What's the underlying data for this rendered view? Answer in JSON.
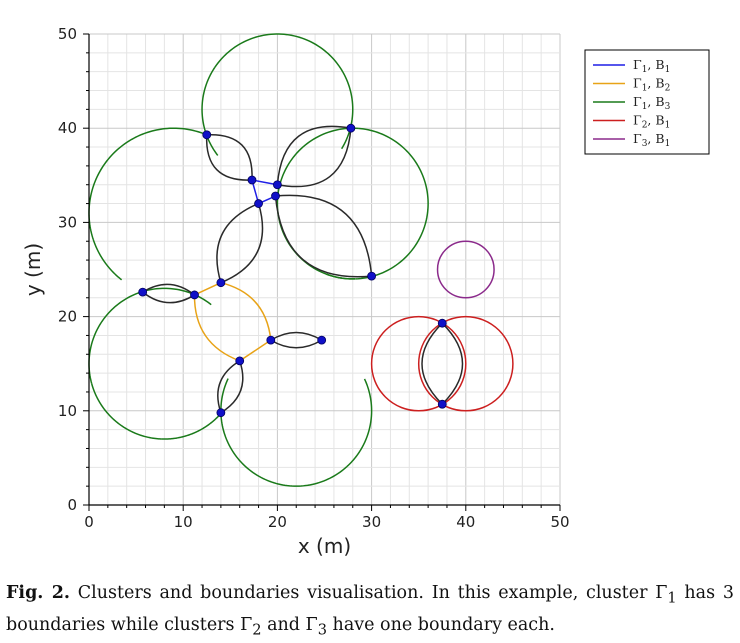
{
  "chart_data": {
    "type": "scatter",
    "xlabel": "x (m)",
    "ylabel": "y (m)",
    "xlim": [
      0,
      50
    ],
    "ylim": [
      0,
      50
    ],
    "x_ticks": [
      "0",
      "10",
      "20",
      "30",
      "40",
      "50"
    ],
    "y_ticks": [
      "0",
      "10",
      "20",
      "30",
      "40",
      "50"
    ],
    "grid": true,
    "legend_position": "top-right",
    "colors": {
      "blue": "#1f1fe6",
      "orange": "#e8a317",
      "green": "#1a7a1a",
      "red": "#cc1f1f",
      "purple": "#8b2a8b",
      "black": "#2a2a2a",
      "node": "#1010c8"
    },
    "legend": [
      {
        "symbol": "Γ",
        "sub1": "1",
        "base": "B",
        "sub2": "1",
        "color": "#1f1fe6"
      },
      {
        "symbol": "Γ",
        "sub1": "1",
        "base": "B",
        "sub2": "2",
        "color": "#e8a317"
      },
      {
        "symbol": "Γ",
        "sub1": "1",
        "base": "B",
        "sub2": "3",
        "color": "#1a7a1a"
      },
      {
        "symbol": "Γ",
        "sub1": "2",
        "base": "B",
        "sub2": "1",
        "color": "#cc1f1f"
      },
      {
        "symbol": "Γ",
        "sub1": "3",
        "base": "B",
        "sub2": "1",
        "color": "#8b2a8b"
      }
    ],
    "circles": [
      {
        "cx": 20,
        "cy": 42,
        "r": 8
      },
      {
        "cx": 9,
        "cy": 31,
        "r": 9
      },
      {
        "cx": 28,
        "cy": 32,
        "r": 8
      },
      {
        "cx": 8,
        "cy": 15,
        "r": 8
      },
      {
        "cx": 22,
        "cy": 10,
        "r": 8
      },
      {
        "cx": 35,
        "cy": 15,
        "r": 5
      },
      {
        "cx": 40,
        "cy": 15,
        "r": 5
      },
      {
        "cx": 40,
        "cy": 25,
        "r": 3
      }
    ],
    "arcs": [
      {
        "p1": [
          12.5,
          39.3
        ],
        "p2": [
          17.3,
          34.5
        ],
        "color": "black",
        "bend": 0.55
      },
      {
        "p1": [
          27.8,
          40.0
        ],
        "p2": [
          20.0,
          34.0
        ],
        "color": "black",
        "bend": -0.55
      },
      {
        "p1": [
          17.3,
          34.5
        ],
        "p2": [
          20.0,
          34.0
        ],
        "color": "blue",
        "bend": 0
      },
      {
        "p1": [
          17.3,
          34.5
        ],
        "p2": [
          18.0,
          32.0
        ],
        "color": "blue",
        "bend": 0
      },
      {
        "p1": [
          18.0,
          32.0
        ],
        "p2": [
          19.8,
          32.8
        ],
        "color": "blue",
        "bend": 0
      },
      {
        "p1": [
          18.0,
          32.0
        ],
        "p2": [
          14.0,
          23.6
        ],
        "color": "black",
        "bend": 0.45
      },
      {
        "p1": [
          19.8,
          32.8
        ],
        "p2": [
          30.0,
          24.3
        ],
        "color": "black",
        "bend": -0.5
      },
      {
        "p1": [
          5.7,
          22.6
        ],
        "p2": [
          11.2,
          22.3
        ],
        "color": "black",
        "bend": 0.35
      },
      {
        "p1": [
          11.2,
          22.3
        ],
        "p2": [
          14.0,
          23.6
        ],
        "color": "orange",
        "bend": 0
      },
      {
        "p1": [
          14.0,
          23.6
        ],
        "p2": [
          19.3,
          17.5
        ],
        "color": "orange",
        "bend": -0.35
      },
      {
        "p1": [
          11.2,
          22.3
        ],
        "p2": [
          16.0,
          15.3
        ],
        "color": "orange",
        "bend": 0.35
      },
      {
        "p1": [
          16.0,
          15.3
        ],
        "p2": [
          19.3,
          17.5
        ],
        "color": "orange",
        "bend": 0
      },
      {
        "p1": [
          16.0,
          15.3
        ],
        "p2": [
          14.0,
          9.8
        ],
        "color": "black",
        "bend": 0.4
      },
      {
        "p1": [
          19.3,
          17.5
        ],
        "p2": [
          24.7,
          17.5
        ],
        "color": "black",
        "bend": 0.3
      },
      {
        "p1": [
          37.5,
          19.3
        ],
        "p2": [
          37.5,
          10.7
        ],
        "color": "black",
        "bend": 0.5
      }
    ],
    "green_arcs": [
      {
        "cx": 20,
        "cy": 42,
        "r": 8,
        "from": 2.55,
        "to": 3.8
      },
      {
        "cx": 9,
        "cy": 31,
        "r": 9,
        "from": 1.13,
        "to": 3.46
      },
      {
        "cx": 28,
        "cy": 32,
        "r": 8,
        "from": 1.5,
        "to": 4.75
      },
      {
        "cx": 8,
        "cy": 15,
        "r": 8,
        "from": 3.41,
        "to": 4.68
      },
      {
        "cx": 22,
        "cy": 10,
        "r": 8,
        "from": 5.45,
        "to": 6.72
      }
    ],
    "nodes": [
      {
        "x": 12.5,
        "y": 39.3
      },
      {
        "x": 27.8,
        "y": 40.0
      },
      {
        "x": 17.3,
        "y": 34.5
      },
      {
        "x": 20.0,
        "y": 34.0
      },
      {
        "x": 18.0,
        "y": 32.0
      },
      {
        "x": 19.8,
        "y": 32.8
      },
      {
        "x": 14.0,
        "y": 23.6
      },
      {
        "x": 30.0,
        "y": 24.3
      },
      {
        "x": 5.7,
        "y": 22.6
      },
      {
        "x": 11.2,
        "y": 22.3
      },
      {
        "x": 19.3,
        "y": 17.5
      },
      {
        "x": 24.7,
        "y": 17.5
      },
      {
        "x": 16.0,
        "y": 15.3
      },
      {
        "x": 14.0,
        "y": 9.8
      },
      {
        "x": 37.5,
        "y": 19.3
      },
      {
        "x": 37.5,
        "y": 10.7
      }
    ]
  },
  "caption": {
    "label": "Fig. 2.",
    "text": "Clusters and boundaries visualisation. In this example, cluster Γ",
    "sub_a": "1",
    "text_b": " has 3 boundaries while clusters Γ",
    "sub_b": "2",
    "text_c": " and Γ",
    "sub_c": "3",
    "text_d": " have one boundary each."
  }
}
